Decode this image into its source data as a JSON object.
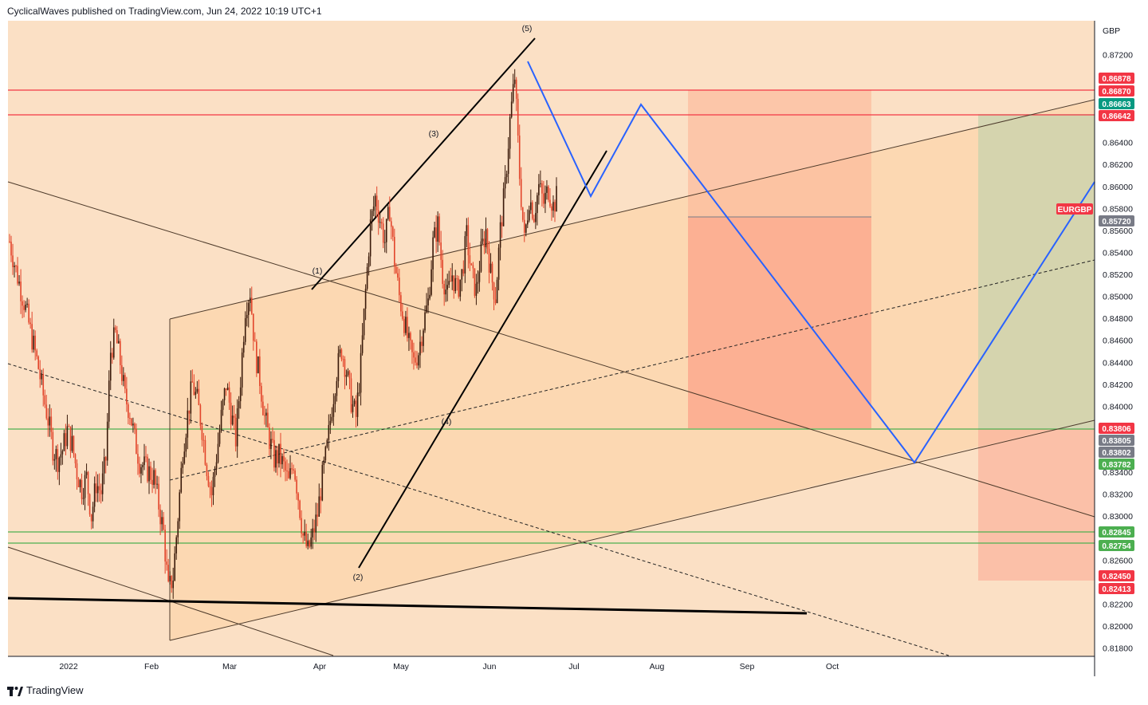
{
  "header": {
    "published_text": "CyclicalWaves published on TradingView.com, Jun 24, 2022 10:19 UTC+1"
  },
  "footer": {
    "brand": "TradingView"
  },
  "chart_data": {
    "type": "candlestick",
    "symbol": "EURGBP",
    "currency": "GBP",
    "ylim": [
      0.8171,
      0.8747
    ],
    "x_ticks": [
      "2022",
      "Feb",
      "Mar",
      "Apr",
      "May",
      "Jun",
      "Jul",
      "Aug",
      "Sep",
      "Oct"
    ],
    "y_ticks": [
      "0.87200",
      "0.86400",
      "0.86200",
      "0.86000",
      "0.85800",
      "0.85600",
      "0.85400",
      "0.85200",
      "0.85000",
      "0.84800",
      "0.84600",
      "0.84400",
      "0.84200",
      "0.84000",
      "0.83400",
      "0.83200",
      "0.83000",
      "0.82600",
      "0.82200",
      "0.82000",
      "0.81800"
    ],
    "price_badges": [
      {
        "label": "0.86878",
        "color": "#f23645"
      },
      {
        "label": "0.86870",
        "color": "#f23645"
      },
      {
        "label": "0.86663",
        "color": "#089981"
      },
      {
        "label": "0.86642",
        "color": "#f23645"
      },
      {
        "label": "EURGBP",
        "color": "#f23645"
      },
      {
        "label": "0.85720",
        "color": "#787b86"
      },
      {
        "label": "0.83806",
        "color": "#f23645"
      },
      {
        "label": "0.83805",
        "color": "#787b86"
      },
      {
        "label": "0.83802",
        "color": "#787b86"
      },
      {
        "label": "0.83782",
        "color": "#4caf50"
      },
      {
        "label": "0.82845",
        "color": "#4caf50"
      },
      {
        "label": "0.82754",
        "color": "#4caf50"
      },
      {
        "label": "0.82450",
        "color": "#f23645"
      },
      {
        "label": "0.82413",
        "color": "#f23645"
      }
    ],
    "horizontal_levels": [
      {
        "value": 0.86878,
        "color": "#f23645"
      },
      {
        "value": 0.86642,
        "color": "#f23645"
      },
      {
        "value": 0.83805,
        "color": "#4caf50"
      },
      {
        "value": 0.82845,
        "color": "#4caf50"
      },
      {
        "value": 0.82754,
        "color": "#4caf50"
      }
    ],
    "wave_labels": [
      "(1)",
      "(2)",
      "(3)",
      "(4)",
      "(5)"
    ],
    "candle_path": [
      [
        0,
        0.855
      ],
      [
        3,
        0.853
      ],
      [
        6,
        0.8512
      ],
      [
        9,
        0.8495
      ],
      [
        12,
        0.8475
      ],
      [
        15,
        0.8455
      ],
      [
        18,
        0.8435
      ],
      [
        21,
        0.841
      ],
      [
        24,
        0.8388
      ],
      [
        27,
        0.8362
      ],
      [
        30,
        0.8352
      ],
      [
        33,
        0.836
      ],
      [
        36,
        0.8378
      ],
      [
        39,
        0.8365
      ],
      [
        42,
        0.834
      ],
      [
        45,
        0.8325
      ],
      [
        48,
        0.8335
      ],
      [
        51,
        0.83
      ],
      [
        54,
        0.833
      ],
      [
        57,
        0.8322
      ],
      [
        60,
        0.8352
      ],
      [
        63,
        0.845
      ],
      [
        66,
        0.8465
      ],
      [
        69,
        0.844
      ],
      [
        72,
        0.8408
      ],
      [
        75,
        0.8395
      ],
      [
        78,
        0.837
      ],
      [
        81,
        0.835
      ],
      [
        84,
        0.8345
      ],
      [
        87,
        0.834
      ],
      [
        90,
        0.8335
      ],
      [
        93,
        0.831
      ],
      [
        96,
        0.8285
      ],
      [
        99,
        0.8232
      ],
      [
        102,
        0.8245
      ],
      [
        105,
        0.83
      ],
      [
        108,
        0.836
      ],
      [
        111,
        0.8392
      ],
      [
        114,
        0.842
      ],
      [
        117,
        0.8405
      ],
      [
        120,
        0.838
      ],
      [
        123,
        0.8345
      ],
      [
        126,
        0.832
      ],
      [
        129,
        0.8355
      ],
      [
        132,
        0.839
      ],
      [
        135,
        0.842
      ],
      [
        138,
        0.8395
      ],
      [
        141,
        0.837
      ],
      [
        144,
        0.8425
      ],
      [
        147,
        0.849
      ],
      [
        150,
        0.8505
      ],
      [
        153,
        0.845
      ],
      [
        156,
        0.8425
      ],
      [
        159,
        0.839
      ],
      [
        162,
        0.837
      ],
      [
        165,
        0.8352
      ],
      [
        168,
        0.8355
      ],
      [
        171,
        0.8345
      ],
      [
        174,
        0.833
      ],
      [
        177,
        0.835
      ],
      [
        180,
        0.8318
      ],
      [
        183,
        0.8282
      ],
      [
        186,
        0.8268
      ],
      [
        189,
        0.8282
      ],
      [
        192,
        0.8302
      ],
      [
        195,
        0.8335
      ],
      [
        198,
        0.8362
      ],
      [
        201,
        0.84
      ],
      [
        204,
        0.8432
      ],
      [
        207,
        0.8452
      ],
      [
        210,
        0.8432
      ],
      [
        213,
        0.8405
      ],
      [
        216,
        0.839
      ],
      [
        219,
        0.8438
      ],
      [
        222,
        0.8505
      ],
      [
        225,
        0.8565
      ],
      [
        228,
        0.859
      ],
      [
        231,
        0.857
      ],
      [
        234,
        0.855
      ],
      [
        237,
        0.858
      ],
      [
        240,
        0.8532
      ],
      [
        243,
        0.85
      ],
      [
        246,
        0.8478
      ],
      [
        249,
        0.8455
      ],
      [
        252,
        0.844
      ],
      [
        255,
        0.845
      ],
      [
        258,
        0.8475
      ],
      [
        261,
        0.8495
      ],
      [
        264,
        0.8548
      ],
      [
        267,
        0.8565
      ],
      [
        270,
        0.852
      ],
      [
        273,
        0.85
      ],
      [
        276,
        0.852
      ],
      [
        279,
        0.8505
      ],
      [
        282,
        0.852
      ],
      [
        285,
        0.8555
      ],
      [
        288,
        0.852
      ],
      [
        291,
        0.8505
      ],
      [
        294,
        0.854
      ],
      [
        297,
        0.856
      ],
      [
        300,
        0.852
      ],
      [
        303,
        0.85
      ],
      [
        306,
        0.856
      ],
      [
        309,
        0.86
      ],
      [
        312,
        0.866
      ],
      [
        315,
        0.87
      ],
      [
        318,
        0.861
      ],
      [
        321,
        0.855
      ],
      [
        324,
        0.859
      ],
      [
        327,
        0.8575
      ],
      [
        330,
        0.86
      ],
      [
        333,
        0.8585
      ],
      [
        336,
        0.8598
      ],
      [
        339,
        0.8582
      ],
      [
        341,
        0.859
      ]
    ],
    "candle_x_start": 0.0,
    "candle_x_end": 0.0
  }
}
